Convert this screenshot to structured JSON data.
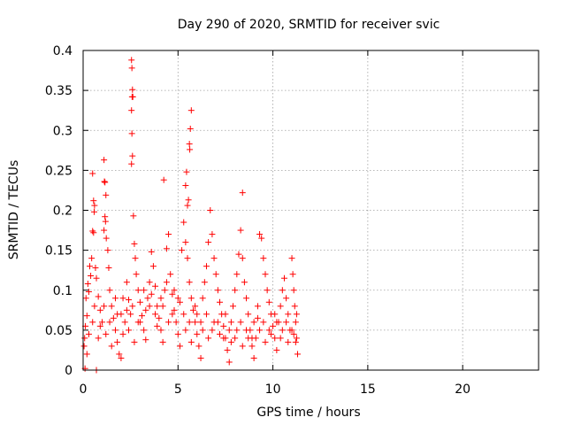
{
  "chart_data": {
    "type": "scatter",
    "title": "Day 290 of 2020, SRMTID for receiver svic",
    "xlabel": "GPS time / hours",
    "ylabel": "SRMTID / TECUs",
    "xlim": [
      0,
      24
    ],
    "ylim": [
      0,
      0.4
    ],
    "xticks": [
      0,
      5,
      10,
      15,
      20
    ],
    "xtick_labels": [
      "0",
      "5",
      "10",
      "15",
      "20"
    ],
    "yticks": [
      0,
      0.05,
      0.1,
      0.15,
      0.2,
      0.25,
      0.3,
      0.35,
      0.4
    ],
    "ytick_labels": [
      "0",
      "0.05",
      "0.1",
      "0.15",
      "0.2",
      "0.25",
      "0.3",
      "0.35",
      "0.4"
    ],
    "grid": true,
    "marker": "+",
    "marker_color": "#ff0000",
    "series": [
      {
        "name": "SRMTID",
        "points": [
          [
            2.55,
            0.388
          ],
          [
            2.57,
            0.378
          ],
          [
            2.6,
            0.351
          ],
          [
            2.62,
            0.342
          ],
          [
            2.58,
            0.342
          ],
          [
            2.55,
            0.325
          ],
          [
            2.57,
            0.296
          ],
          [
            2.6,
            0.268
          ],
          [
            2.55,
            0.258
          ],
          [
            2.65,
            0.193
          ],
          [
            5.7,
            0.325
          ],
          [
            5.65,
            0.302
          ],
          [
            5.6,
            0.283
          ],
          [
            5.62,
            0.276
          ],
          [
            5.45,
            0.248
          ],
          [
            5.4,
            0.231
          ],
          [
            5.55,
            0.213
          ],
          [
            5.5,
            0.206
          ],
          [
            4.25,
            0.238
          ],
          [
            8.4,
            0.222
          ],
          [
            1.1,
            0.263
          ],
          [
            1.12,
            0.236
          ],
          [
            1.15,
            0.235
          ],
          [
            1.2,
            0.219
          ],
          [
            1.15,
            0.192
          ],
          [
            1.18,
            0.186
          ],
          [
            1.1,
            0.175
          ],
          [
            1.22,
            0.165
          ],
          [
            0.5,
            0.246
          ],
          [
            0.55,
            0.212
          ],
          [
            0.6,
            0.206
          ],
          [
            0.58,
            0.198
          ],
          [
            0.5,
            0.174
          ],
          [
            0.55,
            0.172
          ],
          [
            0.1,
            0.002
          ],
          [
            0.7,
            0.0
          ],
          [
            0.08,
            0.04
          ],
          [
            0.12,
            0.055
          ],
          [
            0.2,
            0.068
          ],
          [
            0.15,
            0.09
          ],
          [
            0.3,
            0.098
          ],
          [
            0.35,
            0.13
          ],
          [
            0.4,
            0.118
          ],
          [
            0.25,
            0.108
          ],
          [
            0.05,
            0.03
          ],
          [
            0.45,
            0.14
          ],
          [
            0.65,
            0.128
          ],
          [
            0.7,
            0.115
          ],
          [
            0.8,
            0.092
          ],
          [
            0.9,
            0.075
          ],
          [
            1.0,
            0.06
          ],
          [
            1.3,
            0.15
          ],
          [
            1.35,
            0.128
          ],
          [
            1.4,
            0.1
          ],
          [
            1.5,
            0.08
          ],
          [
            1.6,
            0.065
          ],
          [
            1.7,
            0.05
          ],
          [
            1.8,
            0.035
          ],
          [
            1.9,
            0.02
          ],
          [
            2.0,
            0.015
          ],
          [
            2.1,
            0.045
          ],
          [
            2.2,
            0.06
          ],
          [
            2.3,
            0.075
          ],
          [
            2.4,
            0.088
          ],
          [
            2.5,
            0.07
          ],
          [
            2.7,
            0.158
          ],
          [
            2.75,
            0.14
          ],
          [
            2.8,
            0.12
          ],
          [
            2.9,
            0.1
          ],
          [
            3.0,
            0.085
          ],
          [
            3.1,
            0.068
          ],
          [
            3.2,
            0.05
          ],
          [
            3.3,
            0.038
          ],
          [
            3.4,
            0.09
          ],
          [
            3.5,
            0.11
          ],
          [
            3.6,
            0.148
          ],
          [
            3.7,
            0.13
          ],
          [
            3.8,
            0.105
          ],
          [
            3.9,
            0.08
          ],
          [
            4.0,
            0.065
          ],
          [
            4.1,
            0.05
          ],
          [
            4.2,
            0.035
          ],
          [
            4.3,
            0.1
          ],
          [
            4.4,
            0.152
          ],
          [
            4.5,
            0.17
          ],
          [
            4.6,
            0.12
          ],
          [
            4.7,
            0.095
          ],
          [
            4.8,
            0.075
          ],
          [
            4.9,
            0.06
          ],
          [
            5.0,
            0.045
          ],
          [
            5.1,
            0.03
          ],
          [
            5.2,
            0.15
          ],
          [
            5.3,
            0.185
          ],
          [
            5.4,
            0.16
          ],
          [
            5.5,
            0.14
          ],
          [
            5.6,
            0.11
          ],
          [
            5.7,
            0.09
          ],
          [
            5.8,
            0.075
          ],
          [
            5.9,
            0.06
          ],
          [
            6.0,
            0.045
          ],
          [
            6.1,
            0.03
          ],
          [
            6.2,
            0.015
          ],
          [
            6.3,
            0.09
          ],
          [
            6.4,
            0.11
          ],
          [
            6.5,
            0.13
          ],
          [
            6.6,
            0.16
          ],
          [
            6.7,
            0.2
          ],
          [
            6.8,
            0.17
          ],
          [
            6.9,
            0.14
          ],
          [
            7.0,
            0.12
          ],
          [
            7.1,
            0.1
          ],
          [
            7.2,
            0.085
          ],
          [
            7.3,
            0.07
          ],
          [
            7.4,
            0.055
          ],
          [
            7.5,
            0.04
          ],
          [
            7.6,
            0.025
          ],
          [
            7.7,
            0.01
          ],
          [
            7.8,
            0.06
          ],
          [
            7.9,
            0.08
          ],
          [
            8.0,
            0.1
          ],
          [
            8.1,
            0.12
          ],
          [
            8.2,
            0.145
          ],
          [
            8.3,
            0.175
          ],
          [
            8.4,
            0.14
          ],
          [
            8.5,
            0.11
          ],
          [
            8.6,
            0.09
          ],
          [
            8.7,
            0.07
          ],
          [
            8.8,
            0.05
          ],
          [
            8.9,
            0.03
          ],
          [
            9.0,
            0.015
          ],
          [
            9.1,
            0.04
          ],
          [
            9.2,
            0.065
          ],
          [
            9.3,
            0.17
          ],
          [
            9.4,
            0.165
          ],
          [
            9.5,
            0.14
          ],
          [
            9.6,
            0.12
          ],
          [
            9.7,
            0.1
          ],
          [
            9.8,
            0.085
          ],
          [
            9.9,
            0.07
          ],
          [
            10.0,
            0.055
          ],
          [
            10.1,
            0.04
          ],
          [
            10.2,
            0.025
          ],
          [
            10.3,
            0.06
          ],
          [
            10.4,
            0.08
          ],
          [
            10.5,
            0.1
          ],
          [
            10.6,
            0.115
          ],
          [
            10.7,
            0.09
          ],
          [
            10.8,
            0.07
          ],
          [
            10.9,
            0.05
          ],
          [
            11.0,
            0.14
          ],
          [
            11.05,
            0.12
          ],
          [
            11.1,
            0.1
          ],
          [
            11.15,
            0.08
          ],
          [
            11.2,
            0.06
          ],
          [
            11.25,
            0.04
          ],
          [
            11.3,
            0.02
          ],
          [
            0.3,
            0.045
          ],
          [
            0.6,
            0.08
          ],
          [
            0.9,
            0.055
          ],
          [
            1.2,
            0.045
          ],
          [
            1.5,
            0.03
          ],
          [
            1.8,
            0.07
          ],
          [
            2.1,
            0.09
          ],
          [
            2.4,
            0.05
          ],
          [
            2.7,
            0.035
          ],
          [
            3.0,
            0.06
          ],
          [
            3.3,
            0.075
          ],
          [
            3.6,
            0.095
          ],
          [
            3.9,
            0.055
          ],
          [
            4.2,
            0.08
          ],
          [
            4.5,
            0.06
          ],
          [
            4.8,
            0.1
          ],
          [
            5.1,
            0.085
          ],
          [
            5.4,
            0.05
          ],
          [
            5.7,
            0.035
          ],
          [
            6.0,
            0.07
          ],
          [
            6.3,
            0.05
          ],
          [
            6.6,
            0.04
          ],
          [
            6.9,
            0.06
          ],
          [
            7.2,
            0.045
          ],
          [
            7.5,
            0.07
          ],
          [
            7.8,
            0.035
          ],
          [
            8.1,
            0.05
          ],
          [
            8.4,
            0.03
          ],
          [
            8.7,
            0.04
          ],
          [
            9.0,
            0.06
          ],
          [
            9.3,
            0.05
          ],
          [
            9.6,
            0.035
          ],
          [
            9.9,
            0.045
          ],
          [
            10.2,
            0.06
          ],
          [
            10.5,
            0.05
          ],
          [
            10.8,
            0.035
          ],
          [
            11.1,
            0.045
          ],
          [
            11.25,
            0.07
          ],
          [
            0.2,
            0.02
          ],
          [
            0.5,
            0.06
          ],
          [
            0.8,
            0.04
          ],
          [
            1.1,
            0.08
          ],
          [
            1.4,
            0.06
          ],
          [
            1.7,
            0.09
          ],
          [
            2.0,
            0.07
          ],
          [
            2.3,
            0.11
          ],
          [
            2.6,
            0.08
          ],
          [
            2.9,
            0.06
          ],
          [
            3.2,
            0.1
          ],
          [
            3.5,
            0.08
          ],
          [
            3.8,
            0.07
          ],
          [
            4.1,
            0.09
          ],
          [
            4.4,
            0.11
          ],
          [
            4.7,
            0.07
          ],
          [
            5.0,
            0.09
          ],
          [
            5.3,
            0.07
          ],
          [
            5.6,
            0.06
          ],
          [
            5.9,
            0.08
          ],
          [
            6.2,
            0.06
          ],
          [
            6.5,
            0.07
          ],
          [
            6.8,
            0.05
          ],
          [
            7.1,
            0.06
          ],
          [
            7.4,
            0.04
          ],
          [
            7.7,
            0.05
          ],
          [
            8.0,
            0.04
          ],
          [
            8.3,
            0.06
          ],
          [
            8.6,
            0.05
          ],
          [
            8.9,
            0.04
          ],
          [
            9.2,
            0.08
          ],
          [
            9.5,
            0.06
          ],
          [
            9.8,
            0.05
          ],
          [
            10.1,
            0.07
          ],
          [
            10.4,
            0.04
          ],
          [
            10.7,
            0.06
          ],
          [
            11.0,
            0.05
          ],
          [
            11.2,
            0.035
          ]
        ]
      }
    ]
  }
}
